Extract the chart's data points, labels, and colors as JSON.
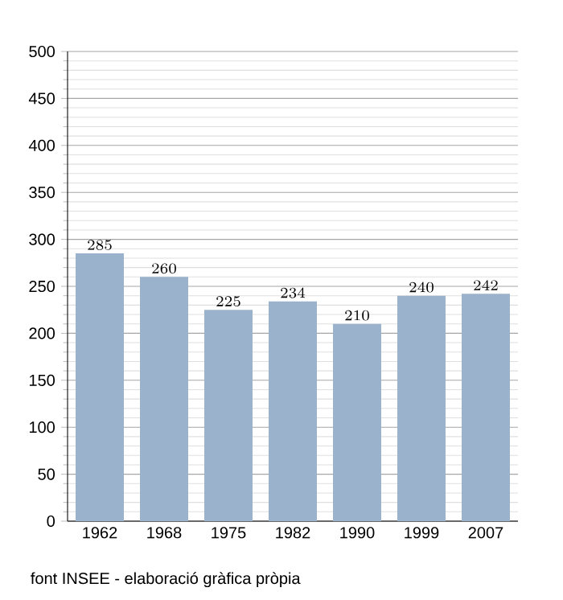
{
  "chart_data": {
    "type": "bar",
    "categories": [
      "1962",
      "1968",
      "1975",
      "1982",
      "1990",
      "1999",
      "2007"
    ],
    "values": [
      285,
      260,
      225,
      234,
      210,
      240,
      242
    ],
    "color": "#9ab2cc",
    "data_labels": true,
    "ylim": [
      0,
      500
    ],
    "yticks": [
      0,
      50,
      100,
      150,
      200,
      250,
      300,
      350,
      400,
      450,
      500
    ],
    "grid": "y",
    "annotations": [
      "font INSEE - elaboració gràfica pròpia"
    ]
  }
}
